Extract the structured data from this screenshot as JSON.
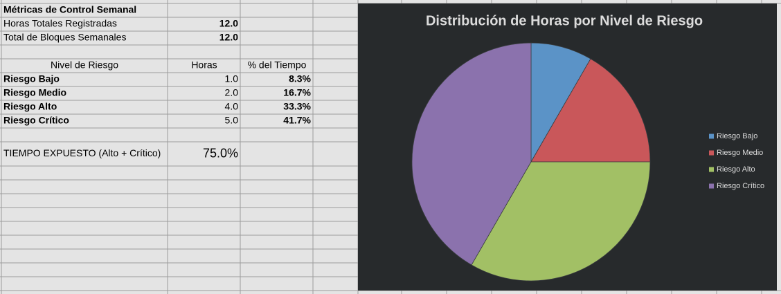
{
  "table": {
    "title": "Métricas de Control Semanal",
    "metrics": [
      {
        "label": "Horas Totales Registradas",
        "value": "12.0"
      },
      {
        "label": "Total de Bloques Semanales",
        "value": "12.0"
      }
    ],
    "header": [
      "Nivel de Riesgo",
      "Horas",
      "% del Tiempo"
    ],
    "rows": [
      [
        "Riesgo Bajo",
        "1.0",
        "8.3%"
      ],
      [
        "Riesgo Medio",
        "2.0",
        "16.7%"
      ],
      [
        "Riesgo Alto",
        "4.0",
        "33.3%"
      ],
      [
        "Riesgo Crítico",
        "5.0",
        "41.7%"
      ]
    ],
    "exposed": {
      "label": "TIEMPO EXPUESTO (Alto + Crítico)",
      "value": "75.0%"
    }
  },
  "chart_data": {
    "type": "pie",
    "title": "Distribución de Horas por Nivel de Riesgo",
    "categories": [
      "Riesgo Bajo",
      "Riesgo Medio",
      "Riesgo Alto",
      "Riesgo Crítico"
    ],
    "values": [
      1,
      2,
      4,
      5
    ],
    "colors": [
      "#5b93c7",
      "#c9575a",
      "#a2c065",
      "#8b72ad"
    ],
    "legend": "right"
  }
}
